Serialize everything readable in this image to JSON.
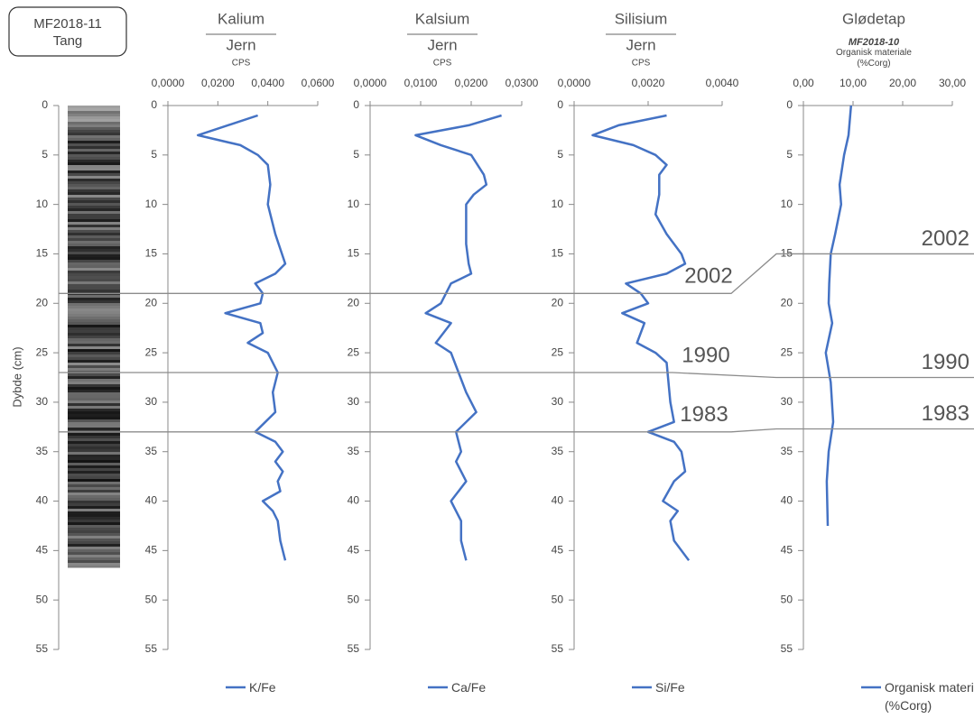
{
  "chart_data": [
    {
      "type": "core",
      "title": "MF2018-11",
      "subtitle": "Tang",
      "ylabel": "Dybde (cm)",
      "ylim": [
        0,
        55
      ],
      "yticks": [
        0,
        5,
        10,
        15,
        20,
        25,
        30,
        35,
        40,
        45,
        50,
        55
      ],
      "core_depth": [
        0,
        46.7
      ]
    },
    {
      "type": "line",
      "title": "Kalium",
      "subtitle": "Jern",
      "unit": "CPS",
      "xlim": [
        0,
        0.06
      ],
      "xticks": [
        {
          "value": 0,
          "label": "0,0000"
        },
        {
          "value": 0.02,
          "label": "0,0200"
        },
        {
          "value": 0.04,
          "label": "0,0400"
        },
        {
          "value": 0.06,
          "label": "0,0600"
        }
      ],
      "ylim": [
        0,
        55
      ],
      "yticks": [
        0,
        5,
        10,
        15,
        20,
        25,
        30,
        35,
        40,
        45,
        50,
        55
      ],
      "series": [
        {
          "name": "K/Fe",
          "color": "#4472c4",
          "y": [
            1,
            3,
            4,
            5,
            5.5,
            6,
            8,
            10,
            13,
            16,
            17,
            18,
            19,
            20,
            21,
            22,
            23,
            24,
            25,
            27,
            29,
            31,
            33,
            34,
            35,
            36,
            37,
            38,
            39,
            40,
            41,
            42,
            44,
            46
          ],
          "values": [
            0.036,
            0.012,
            0.029,
            0.036,
            0.038,
            0.04,
            0.041,
            0.04,
            0.043,
            0.047,
            0.043,
            0.035,
            0.038,
            0.037,
            0.023,
            0.037,
            0.038,
            0.032,
            0.04,
            0.044,
            0.042,
            0.043,
            0.035,
            0.043,
            0.046,
            0.043,
            0.046,
            0.044,
            0.045,
            0.038,
            0.042,
            0.044,
            0.045,
            0.047
          ]
        }
      ]
    },
    {
      "type": "line",
      "title": "Kalsium",
      "subtitle": "Jern",
      "unit": "CPS",
      "xlim": [
        0,
        0.03
      ],
      "xticks": [
        {
          "value": 0,
          "label": "0,0000"
        },
        {
          "value": 0.01,
          "label": "0,0100"
        },
        {
          "value": 0.02,
          "label": "0,0200"
        },
        {
          "value": 0.03,
          "label": "0,0300"
        }
      ],
      "ylim": [
        0,
        55
      ],
      "yticks": [
        0,
        5,
        10,
        15,
        20,
        25,
        30,
        35,
        40,
        45,
        50,
        55
      ],
      "series": [
        {
          "name": "Ca/Fe",
          "color": "#4472c4",
          "y": [
            1,
            2,
            3,
            4,
            5,
            7,
            8,
            9,
            10,
            12,
            14,
            16,
            17,
            18,
            19,
            20,
            21,
            22,
            24,
            25,
            27,
            29,
            31,
            33,
            35,
            36,
            38,
            40,
            42,
            44,
            46
          ],
          "values": [
            0.026,
            0.0195,
            0.009,
            0.014,
            0.02,
            0.0225,
            0.023,
            0.0205,
            0.019,
            0.019,
            0.019,
            0.0195,
            0.02,
            0.016,
            0.015,
            0.014,
            0.011,
            0.016,
            0.013,
            0.016,
            0.0175,
            0.019,
            0.021,
            0.017,
            0.018,
            0.017,
            0.019,
            0.016,
            0.018,
            0.018,
            0.019
          ]
        }
      ]
    },
    {
      "type": "line",
      "title": "Silisium",
      "subtitle": "Jern",
      "unit": "CPS",
      "xlim": [
        0,
        0.004
      ],
      "xticks": [
        {
          "value": 0,
          "label": "0,0000"
        },
        {
          "value": 0.002,
          "label": "0,0020"
        },
        {
          "value": 0.004,
          "label": "0,0040"
        }
      ],
      "ylim": [
        0,
        55
      ],
      "yticks": [
        0,
        5,
        10,
        15,
        20,
        25,
        30,
        35,
        40,
        45,
        50,
        55
      ],
      "series": [
        {
          "name": "Si/Fe",
          "color": "#4472c4",
          "y": [
            1,
            2,
            3,
            4,
            5,
            6,
            7,
            9,
            11,
            13,
            15,
            16,
            17,
            18,
            19,
            20,
            21,
            22,
            24,
            25,
            26,
            30,
            32,
            33,
            34,
            35,
            37,
            38,
            40,
            41,
            42,
            44,
            46
          ],
          "values": [
            0.0025,
            0.0012,
            0.0005,
            0.0016,
            0.0022,
            0.0025,
            0.0023,
            0.0023,
            0.0022,
            0.0025,
            0.0029,
            0.003,
            0.0025,
            0.0014,
            0.0018,
            0.002,
            0.0013,
            0.0019,
            0.0017,
            0.0022,
            0.0025,
            0.0026,
            0.0027,
            0.002,
            0.0027,
            0.0029,
            0.003,
            0.0027,
            0.0024,
            0.0028,
            0.0026,
            0.0027,
            0.0031
          ]
        }
      ]
    },
    {
      "type": "line",
      "title": "Glødetap",
      "subtitle": "MF2018-10",
      "xlabel": "Organisk materiale (%Corg)",
      "xlim": [
        0,
        30
      ],
      "xticks": [
        {
          "value": 0,
          "label": "0,00"
        },
        {
          "value": 10,
          "label": "10,00"
        },
        {
          "value": 20,
          "label": "20,00"
        },
        {
          "value": 30,
          "label": "30,00"
        }
      ],
      "ylim": [
        0,
        55
      ],
      "yticks": [
        0,
        5,
        10,
        15,
        20,
        25,
        30,
        35,
        40,
        45,
        50,
        55
      ],
      "series": [
        {
          "name": "Organisk materiale (%Corg)",
          "color": "#4472c4",
          "y": [
            0,
            3,
            5,
            8,
            10,
            13,
            15,
            18,
            20,
            22,
            25,
            28,
            32,
            35,
            38,
            42.5
          ],
          "values": [
            9.6,
            9.1,
            8.2,
            7.3,
            7.6,
            6.4,
            5.5,
            5.2,
            5.1,
            5.8,
            4.5,
            5.5,
            6.0,
            5.1,
            4.7,
            4.9
          ]
        }
      ]
    }
  ],
  "annotations": [
    {
      "label": "2002",
      "depth": [
        19,
        15
      ]
    },
    {
      "label": "1990",
      "depth": [
        27,
        27.5
      ]
    },
    {
      "label": "1983",
      "depth": [
        33,
        32.7
      ]
    }
  ]
}
